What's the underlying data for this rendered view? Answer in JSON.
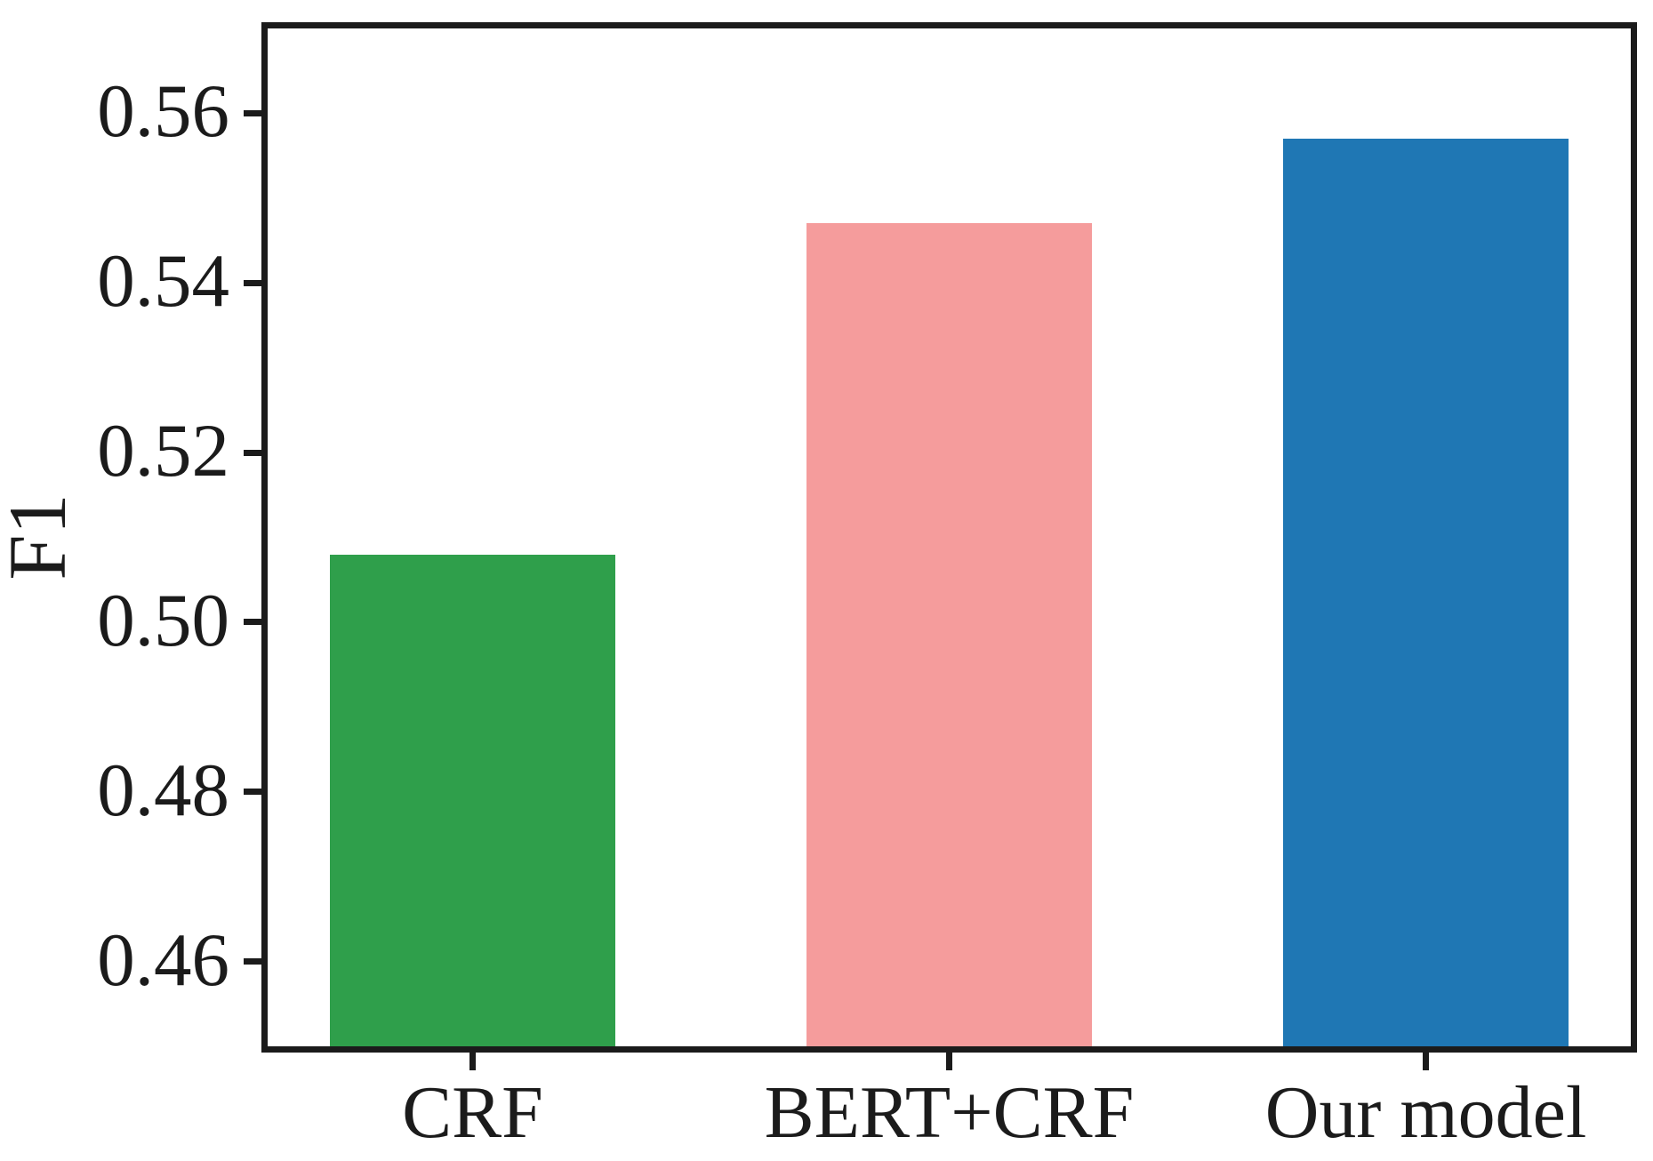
{
  "figure": {
    "background": "#ffffff",
    "frame_color": "#1b1b1b",
    "text_color": "#1b1b1b"
  },
  "chart_data": {
    "type": "bar",
    "title": "",
    "xlabel": "",
    "ylabel": "F1",
    "categories": [
      "CRF",
      "BERT+CRF",
      "Our model"
    ],
    "values": [
      0.508,
      0.547,
      0.557
    ],
    "series": [
      {
        "name": "F1",
        "values": [
          0.508,
          0.547,
          0.557
        ]
      }
    ],
    "bar_colors": [
      "#2f9f4b",
      "#f59c9c",
      "#1f77b4"
    ],
    "bar_width_fraction": 0.6,
    "xlim": [
      -0.43,
      2.43
    ],
    "ylim": [
      0.45,
      0.57
    ],
    "yticks": [
      0.56,
      0.54,
      0.52,
      0.5,
      0.48,
      0.46
    ],
    "ytick_labels": [
      "0.56",
      "0.54",
      "0.52",
      "0.50",
      "0.48",
      "0.46"
    ],
    "grid": false,
    "legend": false
  }
}
